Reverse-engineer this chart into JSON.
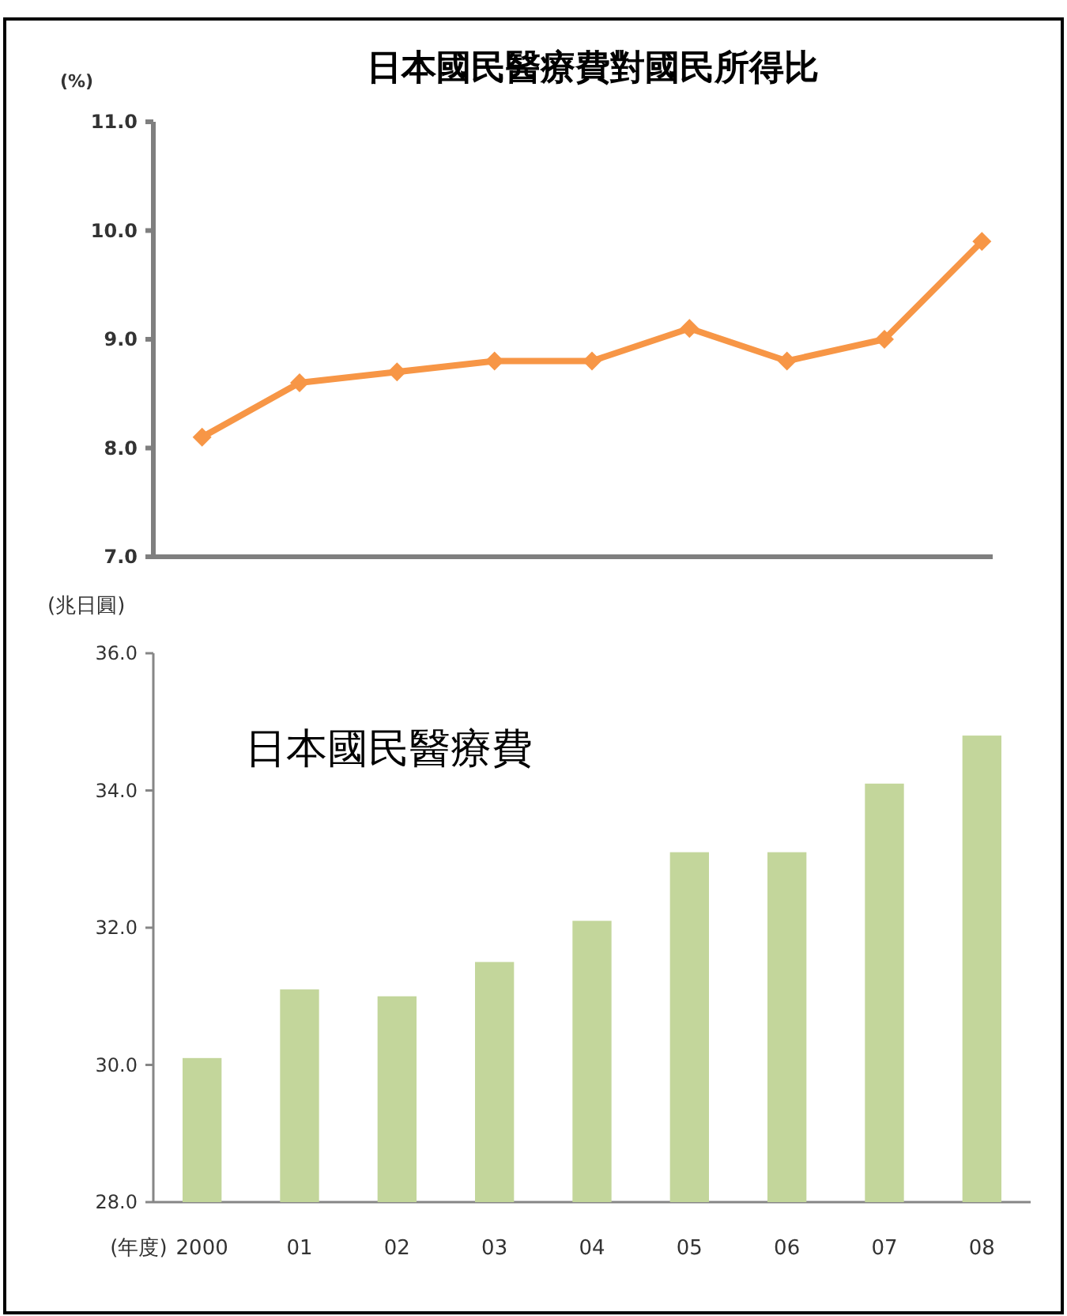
{
  "chart_data": [
    {
      "type": "line",
      "title": "日本國民醫療費對國民所得比",
      "ylabel": "(%)",
      "categories": [
        null,
        null,
        null,
        null,
        null,
        null,
        null,
        null,
        null
      ],
      "tick_labels": "y",
      "ylim": [
        7.0,
        11.0
      ],
      "yticks": [
        {
          "value": 7,
          "label": "7.0"
        },
        {
          "value": 8,
          "label": "8.0"
        },
        {
          "value": 9,
          "label": "9.0"
        },
        {
          "value": 10,
          "label": "10.0"
        },
        {
          "value": 11,
          "label": "11.0"
        }
      ],
      "marker": "diamond",
      "grid": false,
      "series": [
        {
          "color": "#f79646",
          "values": [
            8.1,
            8.6,
            8.7,
            8.8,
            8.8,
            9.1,
            8.8,
            9.0,
            9.9
          ]
        }
      ]
    },
    {
      "type": "bar",
      "title": "日本國民醫療費",
      "ylabel": "(兆日圓)",
      "xlabel": "(年度)",
      "categories": [
        "2000",
        "01",
        "02",
        "03",
        "04",
        "05",
        "06",
        "07",
        "08"
      ],
      "ylim": [
        28.0,
        36.0
      ],
      "yticks": [
        {
          "value": 28,
          "label": "28.0"
        },
        {
          "value": 30,
          "label": "30.0"
        },
        {
          "value": 32,
          "label": "32.0"
        },
        {
          "value": 34,
          "label": "34.0"
        },
        {
          "value": 36,
          "label": "36.0"
        }
      ],
      "grid": false,
      "series": [
        {
          "color": "#c3d69b",
          "values": [
            30.1,
            31.1,
            31.0,
            31.5,
            32.1,
            33.1,
            33.1,
            34.1,
            34.8
          ]
        }
      ]
    }
  ]
}
